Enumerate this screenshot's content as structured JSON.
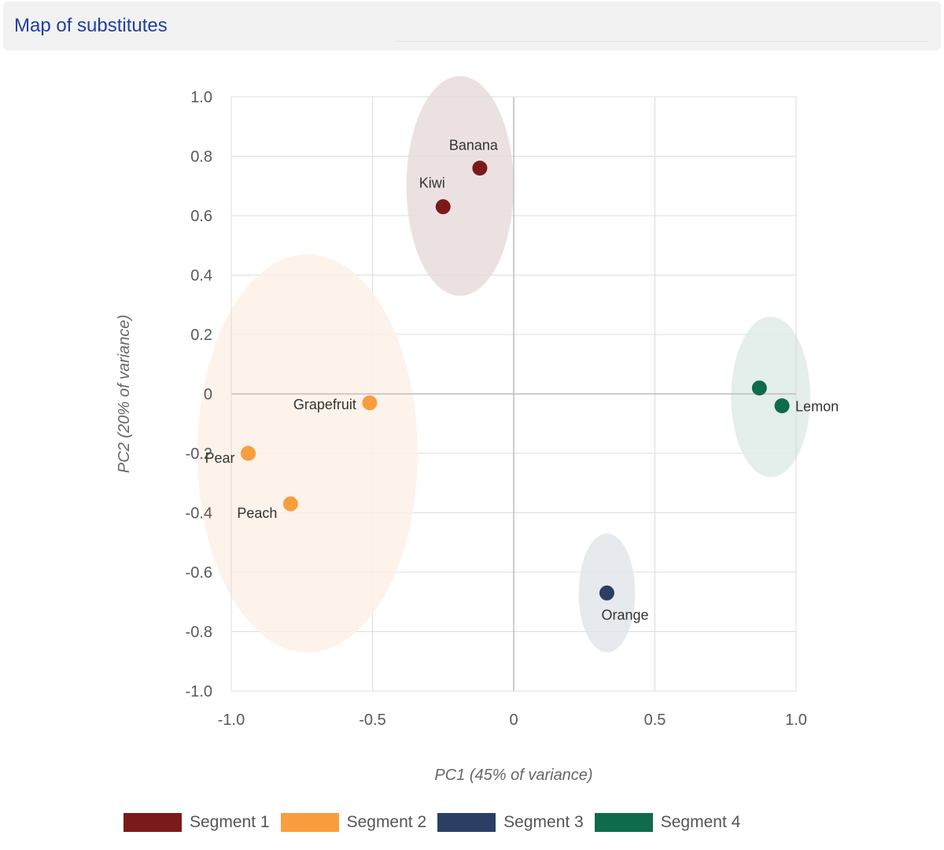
{
  "header": {
    "title": "Map of substitutes"
  },
  "chart_data": {
    "type": "scatter",
    "title": "",
    "xlabel": "PC1 (45% of variance)",
    "ylabel": "PC2 (20% of variance)",
    "xlim": [
      -1.0,
      1.0
    ],
    "ylim": [
      -1.0,
      1.0
    ],
    "xticks": [
      -1.0,
      -0.5,
      0,
      0.5,
      1.0
    ],
    "xtick_labels": [
      "-1.0",
      "-0.5",
      "0",
      "0.5",
      "1.0"
    ],
    "yticks": [
      1.0,
      0.8,
      0.6,
      0.4,
      0.2,
      0,
      -0.2,
      -0.4,
      -0.6,
      -0.8,
      -1.0
    ],
    "ytick_labels": [
      "1.0",
      "0.8",
      "0.6",
      "0.4",
      "0.2",
      "0",
      "-0.2",
      "-0.4",
      "-0.6",
      "-0.8",
      "-1.0"
    ],
    "grid": true,
    "legend_position": "bottom",
    "series": [
      {
        "name": "Segment 1",
        "color": "#7b1a1a",
        "cluster": {
          "cx": -0.19,
          "cy": 0.7,
          "rx": 0.19,
          "ry": 0.37,
          "fill": "#e9dcdc"
        },
        "points": [
          {
            "label": "Banana",
            "x": -0.12,
            "y": 0.76
          },
          {
            "label": "Kiwi",
            "x": -0.25,
            "y": 0.63
          }
        ]
      },
      {
        "name": "Segment 2",
        "color": "#f99e3e",
        "cluster": {
          "cx": -0.73,
          "cy": -0.2,
          "rx": 0.39,
          "ry": 0.67,
          "fill": "#fdf1e6"
        },
        "points": [
          {
            "label": "Grapefruit",
            "x": -0.51,
            "y": -0.03
          },
          {
            "label": "Pear",
            "x": -0.94,
            "y": -0.2
          },
          {
            "label": "Peach",
            "x": -0.79,
            "y": -0.37
          }
        ]
      },
      {
        "name": "Segment 3",
        "color": "#2a3f63",
        "cluster": {
          "cx": 0.33,
          "cy": -0.67,
          "rx": 0.1,
          "ry": 0.2,
          "fill": "#e2e6ec"
        },
        "points": [
          {
            "label": "Orange",
            "x": 0.33,
            "y": -0.67
          }
        ]
      },
      {
        "name": "Segment 4",
        "color": "#0e6b4c",
        "cluster": {
          "cx": 0.91,
          "cy": -0.01,
          "rx": 0.14,
          "ry": 0.27,
          "fill": "#dfebe6"
        },
        "points": [
          {
            "label": "Lemon",
            "x": 0.95,
            "y": -0.04
          },
          {
            "label": "",
            "x": 0.87,
            "y": 0.02
          }
        ]
      }
    ]
  }
}
